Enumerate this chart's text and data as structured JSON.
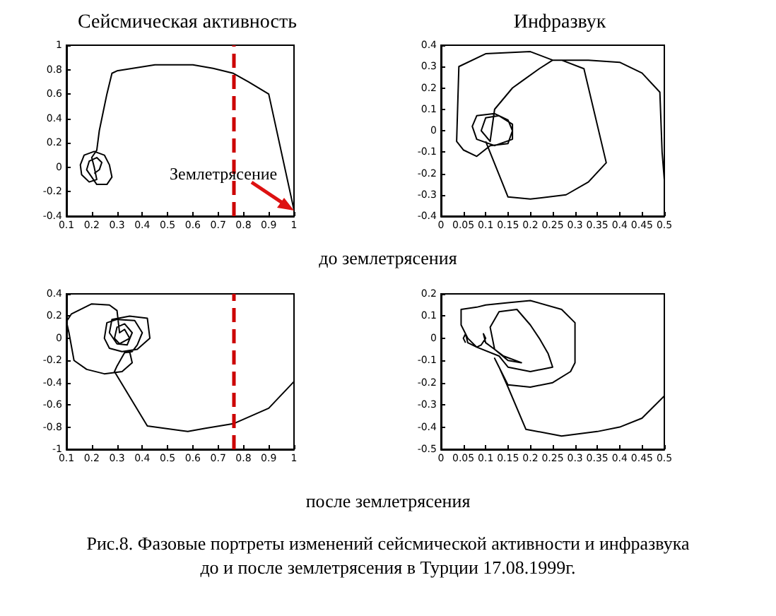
{
  "chart_data": [
    {
      "type": "line",
      "title": "Сейсмическая активность",
      "xlim": [
        0.1,
        1
      ],
      "xticks": [
        0.1,
        0.2,
        0.3,
        0.4,
        0.5,
        0.6,
        0.7,
        0.8,
        0.9,
        1
      ],
      "ylim": [
        -0.4,
        1
      ],
      "yticks": [
        -0.4,
        -0.2,
        0,
        0.2,
        0.4,
        0.6,
        0.8,
        1
      ],
      "series": [
        {
          "color": "#000000",
          "x": [
            0.21,
            0.23,
            0.24,
            0.22,
            0.19,
            0.18,
            0.2,
            0.22,
            0.26,
            0.28,
            0.27,
            0.25,
            0.21,
            0.17,
            0.155,
            0.16,
            0.19,
            0.22,
            0.21,
            0.2,
            0.22,
            0.23,
            0.245,
            0.26,
            0.28,
            0.3,
            0.45,
            0.6,
            0.68,
            0.76,
            0.82,
            0.9,
            1.0
          ],
          "values": [
            -0.05,
            -0.02,
            0.04,
            0.08,
            0.05,
            -0.02,
            -0.08,
            -0.14,
            -0.14,
            -0.08,
            0.02,
            0.1,
            0.13,
            0.1,
            0.02,
            -0.06,
            -0.12,
            -0.1,
            0.0,
            0.08,
            0.14,
            0.3,
            0.45,
            0.6,
            0.77,
            0.79,
            0.84,
            0.84,
            0.81,
            0.77,
            0.7,
            0.6,
            -0.35
          ]
        }
      ],
      "ref_lines": [
        {
          "axis": "x",
          "value": 0.76,
          "color": "#cc0000",
          "line_style": "dashed"
        }
      ],
      "annotations": [
        {
          "text": "Землетрясение",
          "x": 1,
          "y": -0.35
        },
        "до землетрясения"
      ]
    },
    {
      "type": "line",
      "title": "Инфразвук",
      "xlim": [
        0,
        0.5
      ],
      "xticks": [
        0,
        0.05,
        0.1,
        0.15,
        0.2,
        0.25,
        0.3,
        0.35,
        0.4,
        0.45,
        0.5
      ],
      "ylim": [
        -0.4,
        0.4
      ],
      "yticks": [
        -0.4,
        -0.3,
        -0.2,
        -0.1,
        0,
        0.1,
        0.2,
        0.3,
        0.4
      ],
      "series": [
        {
          "color": "#000000",
          "x": [
            0.5,
            0.495,
            0.49,
            0.45,
            0.4,
            0.33,
            0.25,
            0.2,
            0.1,
            0.04,
            0.035,
            0.05,
            0.08,
            0.11,
            0.15,
            0.16,
            0.15,
            0.12,
            0.08,
            0.07,
            0.08,
            0.12,
            0.16,
            0.16,
            0.13,
            0.1,
            0.09,
            0.11,
            0.12,
            0.16,
            0.18,
            0.22,
            0.25,
            0.27,
            0.32,
            0.37,
            0.33,
            0.28,
            0.2,
            0.15,
            0.1
          ],
          "values": [
            -0.23,
            -0.1,
            0.18,
            0.27,
            0.32,
            0.33,
            0.33,
            0.37,
            0.36,
            0.3,
            -0.05,
            -0.09,
            -0.12,
            -0.07,
            -0.06,
            0.0,
            0.05,
            0.08,
            0.07,
            0.02,
            -0.04,
            -0.07,
            -0.04,
            0.03,
            0.07,
            0.06,
            0.0,
            -0.05,
            0.1,
            0.2,
            0.23,
            0.29,
            0.33,
            0.33,
            0.29,
            -0.15,
            -0.24,
            -0.3,
            -0.32,
            -0.31,
            -0.05
          ]
        }
      ]
    },
    {
      "type": "line",
      "xlim": [
        0.1,
        1
      ],
      "xticks": [
        0.1,
        0.2,
        0.3,
        0.4,
        0.5,
        0.6,
        0.7,
        0.8,
        0.9,
        1
      ],
      "ylim": [
        -1,
        0.4
      ],
      "yticks": [
        -1,
        -0.8,
        -0.6,
        -0.4,
        -0.2,
        0,
        0.2,
        0.4
      ],
      "series": [
        {
          "color": "#000000",
          "x": [
            1,
            0.9,
            0.76,
            0.65,
            0.58,
            0.42,
            0.29,
            0.3,
            0.33,
            0.36,
            0.38,
            0.4,
            0.37,
            0.3,
            0.26,
            0.25,
            0.27,
            0.32,
            0.38,
            0.43,
            0.42,
            0.35,
            0.28,
            0.27,
            0.3,
            0.34,
            0.36,
            0.33,
            0.3,
            0.29,
            0.31,
            0.35,
            0.33,
            0.31,
            0.3,
            0.27,
            0.2,
            0.12,
            0.1,
            0.11,
            0.13,
            0.18,
            0.25,
            0.32,
            0.36,
            0.35
          ],
          "values": [
            -0.39,
            -0.63,
            -0.77,
            -0.81,
            -0.84,
            -0.79,
            -0.3,
            -0.25,
            -0.13,
            -0.12,
            -0.06,
            0.05,
            0.16,
            0.17,
            0.14,
            0.0,
            -0.09,
            -0.12,
            -0.1,
            0.0,
            0.18,
            0.2,
            0.17,
            0.05,
            -0.05,
            -0.06,
            0.05,
            0.13,
            0.1,
            0.0,
            -0.05,
            0.0,
            0.08,
            0.05,
            0.25,
            0.3,
            0.31,
            0.22,
            0.15,
            0.05,
            -0.2,
            -0.28,
            -0.32,
            -0.3,
            -0.22,
            -0.12
          ]
        }
      ],
      "ref_lines": [
        {
          "axis": "x",
          "value": 0.76,
          "color": "#cc0000",
          "line_style": "dashed"
        }
      ],
      "annotations": [
        "после землетрясения",
        "Рис.8. Фазовые портреты изменений сейсмической активности и инфразвука\nдо и после землетрясения в Турции 17.08.1999г."
      ]
    },
    {
      "type": "line",
      "xlim": [
        0,
        0.5
      ],
      "xticks": [
        0,
        0.05,
        0.1,
        0.15,
        0.2,
        0.25,
        0.3,
        0.35,
        0.4,
        0.45,
        0.5
      ],
      "ylim": [
        -0.5,
        0.2
      ],
      "yticks": [
        -0.5,
        -0.4,
        -0.3,
        -0.2,
        -0.1,
        0,
        0.1,
        0.2
      ],
      "series": [
        {
          "color": "#000000",
          "x": [
            0.5,
            0.45,
            0.4,
            0.35,
            0.27,
            0.19,
            0.15,
            0.13,
            0.12,
            0.15,
            0.2,
            0.25,
            0.29,
            0.3,
            0.3,
            0.27,
            0.2,
            0.15,
            0.1,
            0.08,
            0.045,
            0.045,
            0.06,
            0.08,
            0.13,
            0.15,
            0.2,
            0.25,
            0.24,
            0.22,
            0.2,
            0.17,
            0.13,
            0.11,
            0.12,
            0.14,
            0.18,
            0.15,
            0.12,
            0.1,
            0.095,
            0.1,
            0.09,
            0.08,
            0.06,
            0.055,
            0.05,
            0.055
          ],
          "values": [
            -0.26,
            -0.36,
            -0.4,
            -0.42,
            -0.44,
            -0.41,
            -0.22,
            -0.13,
            -0.09,
            -0.21,
            -0.22,
            -0.2,
            -0.15,
            -0.11,
            0.07,
            0.13,
            0.17,
            0.16,
            0.15,
            0.14,
            0.13,
            0.06,
            0.0,
            -0.04,
            -0.08,
            -0.13,
            -0.15,
            -0.13,
            -0.07,
            0.0,
            0.06,
            0.13,
            0.12,
            0.05,
            -0.05,
            -0.08,
            -0.11,
            -0.1,
            -0.05,
            -0.02,
            0.02,
            0.0,
            -0.03,
            -0.04,
            -0.02,
            0.02,
            0.0,
            -0.02
          ]
        }
      ]
    }
  ]
}
